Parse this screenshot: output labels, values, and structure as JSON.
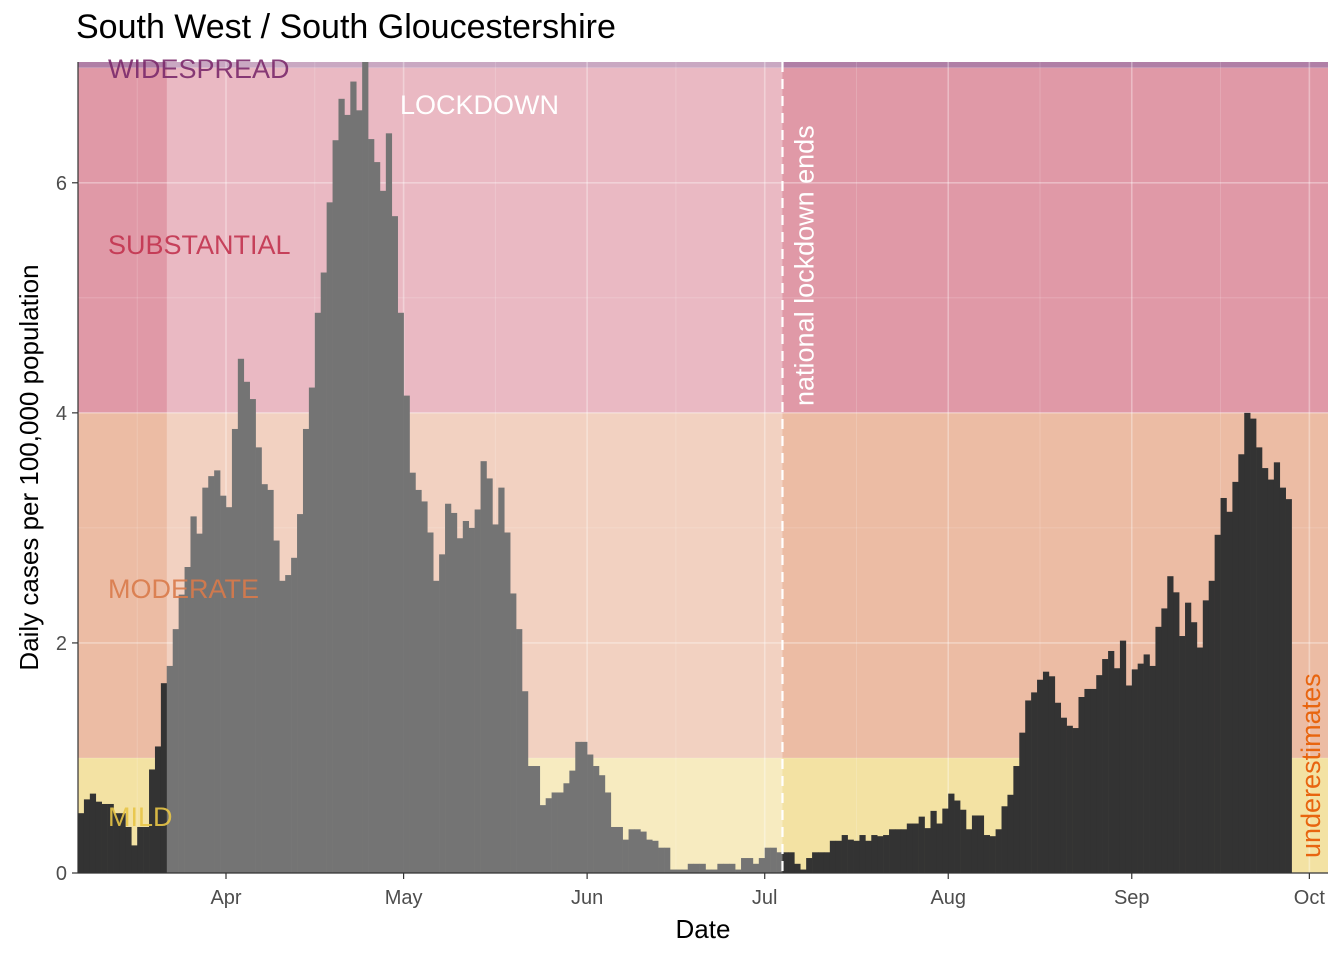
{
  "chart_data": {
    "type": "bar",
    "title": "South West / South Gloucestershire",
    "xlabel": "Date",
    "ylabel": "Daily cases per 100,000 population",
    "x_ticks": [
      "Apr",
      "May",
      "Jun",
      "Jul",
      "Aug",
      "Sep",
      "Oct"
    ],
    "y_ticks": [
      "0",
      "2",
      "4",
      "6"
    ],
    "ylim": [
      0,
      7.05
    ],
    "x_start": "2021-03-07",
    "grid": true,
    "bands": [
      {
        "label": "MILD",
        "from": 0,
        "to": 1,
        "color": "#E8C547"
      },
      {
        "label": "MODERATE",
        "from": 1,
        "to": 4,
        "color": "#D97A4A"
      },
      {
        "label": "SUBSTANTIAL",
        "from": 4,
        "to": 7,
        "color": "#C2334F"
      },
      {
        "label": "WIDESPREAD",
        "from": 7,
        "to": 7.05,
        "color": "#7B2A6B"
      }
    ],
    "lockdown_label": "LOCKDOWN",
    "lockdown_end_label": "national lockdown ends",
    "lockdown_end_date": "2021-07-04",
    "underestimates_label": "underestimates",
    "values": [
      0.52,
      0.64,
      0.69,
      0.62,
      0.6,
      0.6,
      0.52,
      0.52,
      0.4,
      0.24,
      0.4,
      0.4,
      0.9,
      1.1,
      1.65,
      1.8,
      2.12,
      2.42,
      2.66,
      3.1,
      2.95,
      3.35,
      3.45,
      3.5,
      3.28,
      3.18,
      3.86,
      4.47,
      4.27,
      4.12,
      3.7,
      3.38,
      3.33,
      2.89,
      2.54,
      2.59,
      2.74,
      3.12,
      3.86,
      4.22,
      4.87,
      5.22,
      5.83,
      6.37,
      6.73,
      6.59,
      6.88,
      6.63,
      7.05,
      6.38,
      6.18,
      5.93,
      6.43,
      5.71,
      4.87,
      4.15,
      3.48,
      3.33,
      3.23,
      2.96,
      2.54,
      2.77,
      3.21,
      3.13,
      2.91,
      3.06,
      3.0,
      3.16,
      3.58,
      3.43,
      3.03,
      3.35,
      2.96,
      2.43,
      2.12,
      1.58,
      0.93,
      0.93,
      0.59,
      0.65,
      0.7,
      0.7,
      0.78,
      0.89,
      1.14,
      1.14,
      1.03,
      0.93,
      0.85,
      0.7,
      0.4,
      0.4,
      0.29,
      0.38,
      0.38,
      0.36,
      0.29,
      0.28,
      0.22,
      0.22,
      0.03,
      0.03,
      0.03,
      0.08,
      0.08,
      0.08,
      0.03,
      0.03,
      0.08,
      0.08,
      0.08,
      0.03,
      0.13,
      0.13,
      0.08,
      0.13,
      0.22,
      0.22,
      0.18,
      0.18,
      0.18,
      0.08,
      0.03,
      0.13,
      0.18,
      0.18,
      0.18,
      0.28,
      0.28,
      0.33,
      0.29,
      0.28,
      0.33,
      0.28,
      0.33,
      0.32,
      0.33,
      0.38,
      0.38,
      0.38,
      0.43,
      0.43,
      0.49,
      0.39,
      0.54,
      0.43,
      0.56,
      0.69,
      0.63,
      0.55,
      0.38,
      0.5,
      0.5,
      0.33,
      0.32,
      0.38,
      0.58,
      0.68,
      0.93,
      1.22,
      1.5,
      1.57,
      1.68,
      1.75,
      1.71,
      1.48,
      1.35,
      1.28,
      1.26,
      1.53,
      1.6,
      1.6,
      1.72,
      1.86,
      1.93,
      1.78,
      2.02,
      1.63,
      1.77,
      1.82,
      1.9,
      1.8,
      2.14,
      2.3,
      2.58,
      2.44,
      2.06,
      2.35,
      2.18,
      1.96,
      2.37,
      2.54,
      2.94,
      3.26,
      3.14,
      3.4,
      3.64,
      4.0,
      3.95,
      3.7,
      3.52,
      3.42,
      3.57,
      3.35,
      3.25
    ]
  }
}
